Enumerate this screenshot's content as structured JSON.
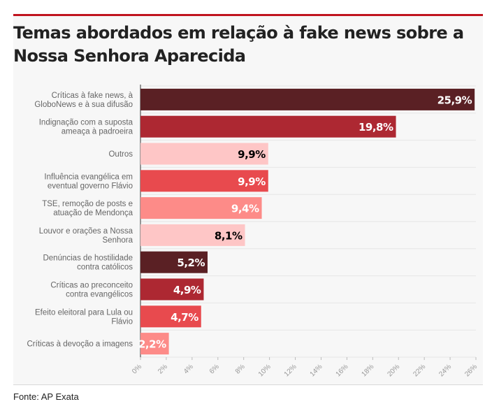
{
  "header": {
    "title": "Temas abordados em relação à fake news sobre a Nossa Senhora Aparecida"
  },
  "footer": {
    "source": "Fonte: AP Exata"
  },
  "chart_data": {
    "type": "bar",
    "orientation": "horizontal",
    "title": "Temas abordados em relação à fake news sobre a Nossa Senhora Aparecida",
    "xlabel": "",
    "ylabel": "",
    "xlim": [
      0,
      26
    ],
    "x_ticks": [
      "0%",
      "2%",
      "4%",
      "6%",
      "8%",
      "10%",
      "12%",
      "14%",
      "16%",
      "18%",
      "20%",
      "22%",
      "24%",
      "26%"
    ],
    "grid": true,
    "categories": [
      [
        "Críticas à fake news, à",
        "GloboNews e à sua difusão"
      ],
      [
        "Indignação com a suposta",
        "ameaça à padroeira"
      ],
      [
        "Outros"
      ],
      [
        "Influência evangélica em",
        "eventual governo Flávio"
      ],
      [
        "TSE, remoção de posts e",
        "atuação de Mendonça"
      ],
      [
        "Louvor e orações a Nossa",
        "Senhora"
      ],
      [
        "Denúncias de hostilidade",
        "contra católicos"
      ],
      [
        "Críticas ao preconceito",
        "contra evangélicos"
      ],
      [
        "Efeito eleitoral para Lula ou",
        "Flávio"
      ],
      [
        "Críticas à devoção a imagens"
      ]
    ],
    "values": [
      25.9,
      19.8,
      9.9,
      9.9,
      9.4,
      8.1,
      5.2,
      4.9,
      4.7,
      2.2
    ],
    "value_labels": [
      "25,9%",
      "19,8%",
      "9,9%",
      "9,9%",
      "9,4%",
      "8,1%",
      "5,2%",
      "4,9%",
      "4,7%",
      "2,2%"
    ],
    "colors": [
      "#5a2024",
      "#ad2832",
      "#fec6c6",
      "#e84a4e",
      "#fd8b88",
      "#fec6c6",
      "#5a2024",
      "#ad2832",
      "#e84a4e",
      "#fd8b88"
    ],
    "label_colors": [
      "#ffffff",
      "#ffffff",
      "#000000",
      "#ffffff",
      "#ffffff",
      "#000000",
      "#ffffff",
      "#ffffff",
      "#ffffff",
      "#ffffff"
    ]
  }
}
